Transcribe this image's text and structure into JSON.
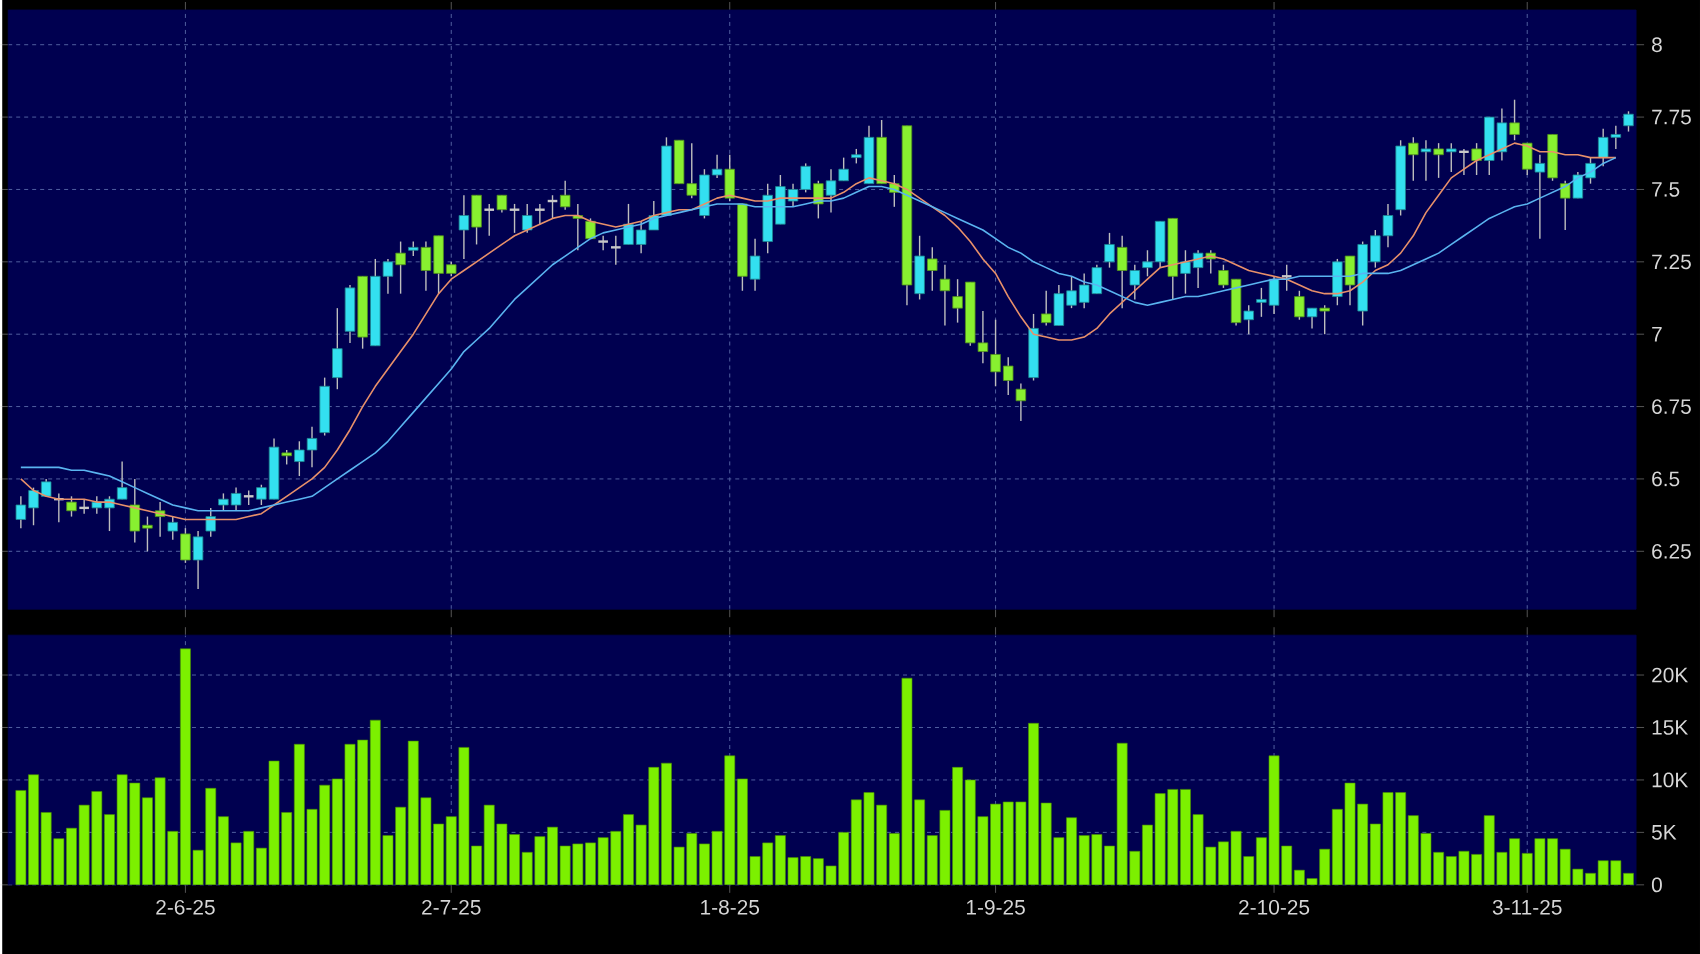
{
  "chart_data": [
    {
      "type": "candlestick",
      "tick_labels": "y",
      "grid": true,
      "ylim": [
        6.05,
        8.12
      ],
      "yticks": [
        6.25,
        6.5,
        6.75,
        7,
        7.25,
        7.5,
        7.75,
        8
      ],
      "categories": [
        null,
        null,
        null,
        null,
        null,
        null,
        null,
        null,
        null,
        null,
        null,
        null,
        null,
        null,
        null,
        null,
        null,
        null,
        null,
        null,
        null,
        null,
        null,
        null,
        null,
        null,
        null,
        null,
        null,
        null,
        null,
        null,
        null,
        null,
        null,
        null,
        null,
        null,
        null,
        null,
        null,
        null,
        null,
        null,
        null,
        null,
        null,
        null,
        null,
        null,
        null,
        null,
        null,
        null,
        null,
        null,
        null,
        null,
        null,
        null,
        null,
        null,
        null,
        null,
        null,
        null,
        null,
        null,
        null,
        null,
        null,
        null,
        null,
        null,
        null,
        null,
        null,
        null,
        null,
        null,
        null,
        null,
        null,
        null,
        null,
        null,
        null,
        null,
        null,
        null,
        null,
        null,
        null,
        null,
        null,
        null,
        null,
        null,
        null,
        null,
        null,
        null,
        null,
        null,
        null,
        null,
        null,
        null,
        null,
        null,
        null,
        null,
        null,
        null,
        null,
        null,
        null,
        null,
        null,
        null,
        null,
        null,
        null,
        null,
        null,
        null,
        null,
        null
      ],
      "ohlc": [
        [
          6.36,
          6.44,
          6.33,
          6.41
        ],
        [
          6.4,
          6.47,
          6.34,
          6.46
        ],
        [
          6.44,
          6.5,
          6.44,
          6.49
        ],
        [
          6.43,
          6.45,
          6.35,
          6.43
        ],
        [
          6.42,
          6.44,
          6.37,
          6.39
        ],
        [
          6.4,
          6.43,
          6.38,
          6.4
        ],
        [
          6.4,
          6.44,
          6.38,
          6.42
        ],
        [
          6.4,
          6.44,
          6.32,
          6.43
        ],
        [
          6.43,
          6.56,
          6.43,
          6.47
        ],
        [
          6.41,
          6.5,
          6.28,
          6.32
        ],
        [
          6.34,
          6.37,
          6.25,
          6.33
        ],
        [
          6.39,
          6.42,
          6.3,
          6.37
        ],
        [
          6.32,
          6.37,
          6.29,
          6.35
        ],
        [
          6.31,
          6.33,
          6.21,
          6.22
        ],
        [
          6.22,
          6.32,
          6.12,
          6.3
        ],
        [
          6.32,
          6.4,
          6.3,
          6.37
        ],
        [
          6.41,
          6.45,
          6.39,
          6.43
        ],
        [
          6.41,
          6.47,
          6.39,
          6.45
        ],
        [
          6.44,
          6.46,
          6.41,
          6.44
        ],
        [
          6.43,
          6.48,
          6.41,
          6.47
        ],
        [
          6.43,
          6.64,
          6.43,
          6.61
        ],
        [
          6.59,
          6.6,
          6.55,
          6.58
        ],
        [
          6.56,
          6.63,
          6.51,
          6.6
        ],
        [
          6.6,
          6.68,
          6.54,
          6.64
        ],
        [
          6.66,
          6.85,
          6.65,
          6.82
        ],
        [
          6.85,
          7.09,
          6.81,
          6.95
        ],
        [
          7.01,
          7.17,
          6.97,
          7.16
        ],
        [
          7.2,
          7.2,
          6.95,
          6.99
        ],
        [
          6.96,
          7.26,
          6.96,
          7.2
        ],
        [
          7.2,
          7.26,
          7.14,
          7.25
        ],
        [
          7.28,
          7.32,
          7.14,
          7.24
        ],
        [
          7.29,
          7.32,
          7.27,
          7.3
        ],
        [
          7.3,
          7.32,
          7.15,
          7.22
        ],
        [
          7.34,
          7.34,
          7.14,
          7.21
        ],
        [
          7.24,
          7.25,
          7.2,
          7.21
        ],
        [
          7.36,
          7.48,
          7.26,
          7.41
        ],
        [
          7.48,
          7.48,
          7.31,
          7.37
        ],
        [
          7.43,
          7.45,
          7.34,
          7.43
        ],
        [
          7.48,
          7.48,
          7.42,
          7.43
        ],
        [
          7.43,
          7.45,
          7.35,
          7.43
        ],
        [
          7.36,
          7.45,
          7.35,
          7.41
        ],
        [
          7.43,
          7.45,
          7.38,
          7.43
        ],
        [
          7.46,
          7.48,
          7.4,
          7.46
        ],
        [
          7.48,
          7.53,
          7.43,
          7.44
        ],
        [
          7.41,
          7.45,
          7.29,
          7.4
        ],
        [
          7.39,
          7.4,
          7.33,
          7.33
        ],
        [
          7.32,
          7.34,
          7.29,
          7.32
        ],
        [
          7.3,
          7.34,
          7.24,
          7.3
        ],
        [
          7.31,
          7.45,
          7.31,
          7.38
        ],
        [
          7.31,
          7.39,
          7.28,
          7.36
        ],
        [
          7.36,
          7.46,
          7.36,
          7.41
        ],
        [
          7.41,
          7.68,
          7.41,
          7.65
        ],
        [
          7.67,
          7.67,
          7.52,
          7.52
        ],
        [
          7.52,
          7.66,
          7.47,
          7.48
        ],
        [
          7.41,
          7.57,
          7.4,
          7.55
        ],
        [
          7.55,
          7.62,
          7.54,
          7.57
        ],
        [
          7.57,
          7.62,
          7.46,
          7.47
        ],
        [
          7.45,
          7.45,
          7.15,
          7.2
        ],
        [
          7.19,
          7.33,
          7.15,
          7.27
        ],
        [
          7.32,
          7.52,
          7.28,
          7.48
        ],
        [
          7.38,
          7.55,
          7.38,
          7.51
        ],
        [
          7.46,
          7.52,
          7.44,
          7.5
        ],
        [
          7.5,
          7.59,
          7.49,
          7.58
        ],
        [
          7.52,
          7.53,
          7.4,
          7.45
        ],
        [
          7.48,
          7.57,
          7.42,
          7.53
        ],
        [
          7.53,
          7.61,
          7.53,
          7.57
        ],
        [
          7.61,
          7.64,
          7.59,
          7.62
        ],
        [
          7.52,
          7.72,
          7.52,
          7.68
        ],
        [
          7.68,
          7.74,
          7.52,
          7.52
        ],
        [
          7.52,
          7.55,
          7.44,
          7.49
        ],
        [
          7.72,
          7.72,
          7.1,
          7.17
        ],
        [
          7.14,
          7.34,
          7.12,
          7.27
        ],
        [
          7.26,
          7.3,
          7.15,
          7.22
        ],
        [
          7.19,
          7.24,
          7.03,
          7.15
        ],
        [
          7.13,
          7.19,
          7.04,
          7.09
        ],
        [
          7.18,
          7.18,
          6.96,
          6.97
        ],
        [
          6.97,
          7.08,
          6.9,
          6.94
        ],
        [
          6.93,
          7.05,
          6.82,
          6.87
        ],
        [
          6.89,
          6.92,
          6.79,
          6.84
        ],
        [
          6.81,
          6.83,
          6.7,
          6.77
        ],
        [
          6.85,
          7.07,
          6.84,
          7.02
        ],
        [
          7.07,
          7.15,
          7.03,
          7.04
        ],
        [
          7.03,
          7.17,
          7.03,
          7.14
        ],
        [
          7.1,
          7.2,
          7.09,
          7.15
        ],
        [
          7.11,
          7.21,
          7.09,
          7.17
        ],
        [
          7.14,
          7.24,
          7.14,
          7.23
        ],
        [
          7.25,
          7.35,
          7.23,
          7.31
        ],
        [
          7.3,
          7.34,
          7.09,
          7.22
        ],
        [
          7.17,
          7.24,
          7.12,
          7.22
        ],
        [
          7.23,
          7.29,
          7.2,
          7.25
        ],
        [
          7.25,
          7.39,
          7.23,
          7.39
        ],
        [
          7.4,
          7.4,
          7.12,
          7.2
        ],
        [
          7.21,
          7.29,
          7.14,
          7.25
        ],
        [
          7.23,
          7.29,
          7.16,
          7.28
        ],
        [
          7.28,
          7.29,
          7.21,
          7.26
        ],
        [
          7.22,
          7.24,
          7.16,
          7.17
        ],
        [
          7.19,
          7.19,
          7.03,
          7.04
        ],
        [
          7.05,
          7.1,
          7.0,
          7.08
        ],
        [
          7.11,
          7.16,
          7.06,
          7.12
        ],
        [
          7.1,
          7.2,
          7.07,
          7.19
        ],
        [
          7.2,
          7.24,
          7.15,
          7.2
        ],
        [
          7.13,
          7.15,
          7.05,
          7.06
        ],
        [
          7.06,
          7.09,
          7.02,
          7.09
        ],
        [
          7.09,
          7.1,
          7.0,
          7.08
        ],
        [
          7.13,
          7.26,
          7.1,
          7.25
        ],
        [
          7.27,
          7.27,
          7.1,
          7.17
        ],
        [
          7.08,
          7.32,
          7.03,
          7.31
        ],
        [
          7.25,
          7.36,
          7.23,
          7.34
        ],
        [
          7.34,
          7.45,
          7.3,
          7.41
        ],
        [
          7.43,
          7.67,
          7.41,
          7.65
        ],
        [
          7.66,
          7.68,
          7.53,
          7.62
        ],
        [
          7.63,
          7.67,
          7.53,
          7.64
        ],
        [
          7.64,
          7.66,
          7.54,
          7.62
        ],
        [
          7.63,
          7.66,
          7.56,
          7.64
        ],
        [
          7.63,
          7.64,
          7.55,
          7.63
        ],
        [
          7.64,
          7.66,
          7.55,
          7.6
        ],
        [
          7.6,
          7.75,
          7.55,
          7.75
        ],
        [
          7.63,
          7.78,
          7.6,
          7.73
        ],
        [
          7.73,
          7.81,
          7.67,
          7.69
        ],
        [
          7.66,
          7.66,
          7.55,
          7.57
        ],
        [
          7.56,
          7.62,
          7.33,
          7.59
        ],
        [
          7.69,
          7.69,
          7.53,
          7.54
        ],
        [
          7.52,
          7.53,
          7.36,
          7.47
        ],
        [
          7.47,
          7.56,
          7.47,
          7.55
        ],
        [
          7.54,
          7.61,
          7.52,
          7.59
        ],
        [
          7.61,
          7.71,
          7.58,
          7.68
        ],
        [
          7.68,
          7.72,
          7.64,
          7.69
        ],
        [
          7.72,
          7.77,
          7.7,
          7.76
        ]
      ],
      "colors": [
        "#33e0f0",
        "#33e0f0",
        "#33e0f0",
        "#c8c8c8",
        "#88f030",
        "#c8c8c8",
        "#33e0f0",
        "#33e0f0",
        "#33e0f0",
        "#88f030",
        "#88f030",
        "#88f030",
        "#33e0f0",
        "#88f030",
        "#33e0f0",
        "#33e0f0",
        "#33e0f0",
        "#33e0f0",
        "#c8c8c8",
        "#33e0f0",
        "#33e0f0",
        "#88f030",
        "#33e0f0",
        "#33e0f0",
        "#33e0f0",
        "#33e0f0",
        "#33e0f0",
        "#88f030",
        "#33e0f0",
        "#33e0f0",
        "#88f030",
        "#33e0f0",
        "#88f030",
        "#88f030",
        "#88f030",
        "#33e0f0",
        "#88f030",
        "#c8c8c8",
        "#88f030",
        "#c8c8c8",
        "#33e0f0",
        "#c8c8c8",
        "#c8c8c8",
        "#88f030",
        "#88f030",
        "#88f030",
        "#c8c8c8",
        "#c8c8c8",
        "#33e0f0",
        "#33e0f0",
        "#33e0f0",
        "#33e0f0",
        "#88f030",
        "#88f030",
        "#33e0f0",
        "#33e0f0",
        "#88f030",
        "#88f030",
        "#33e0f0",
        "#33e0f0",
        "#33e0f0",
        "#33e0f0",
        "#33e0f0",
        "#88f030",
        "#33e0f0",
        "#33e0f0",
        "#33e0f0",
        "#33e0f0",
        "#88f030",
        "#88f030",
        "#88f030",
        "#33e0f0",
        "#88f030",
        "#88f030",
        "#88f030",
        "#88f030",
        "#88f030",
        "#88f030",
        "#88f030",
        "#88f030",
        "#33e0f0",
        "#88f030",
        "#33e0f0",
        "#33e0f0",
        "#33e0f0",
        "#33e0f0",
        "#33e0f0",
        "#88f030",
        "#33e0f0",
        "#33e0f0",
        "#33e0f0",
        "#88f030",
        "#33e0f0",
        "#33e0f0",
        "#88f030",
        "#88f030",
        "#88f030",
        "#33e0f0",
        "#33e0f0",
        "#33e0f0",
        "#c8c8c8",
        "#88f030",
        "#33e0f0",
        "#88f030",
        "#33e0f0",
        "#88f030",
        "#33e0f0",
        "#33e0f0",
        "#33e0f0",
        "#33e0f0",
        "#88f030",
        "#33e0f0",
        "#88f030",
        "#33e0f0",
        "#c8c8c8",
        "#88f030",
        "#33e0f0",
        "#33e0f0",
        "#88f030",
        "#88f030",
        "#33e0f0",
        "#88f030",
        "#88f030",
        "#33e0f0",
        "#33e0f0",
        "#33e0f0",
        "#33e0f0",
        "#33e0f0"
      ],
      "series": [
        {
          "type": "line",
          "color": "#e8906a",
          "values": [
            6.5,
            6.46,
            6.44,
            6.43,
            6.43,
            6.43,
            6.42,
            6.42,
            6.41,
            6.4,
            6.39,
            6.38,
            6.37,
            6.36,
            6.36,
            6.36,
            6.36,
            6.36,
            6.37,
            6.38,
            6.41,
            6.44,
            6.47,
            6.5,
            6.54,
            6.6,
            6.67,
            6.75,
            6.82,
            6.88,
            6.94,
            7.0,
            7.07,
            7.14,
            7.19,
            7.22,
            7.25,
            7.28,
            7.31,
            7.34,
            7.36,
            7.38,
            7.4,
            7.41,
            7.41,
            7.39,
            7.38,
            7.37,
            7.38,
            7.39,
            7.41,
            7.42,
            7.43,
            7.43,
            7.45,
            7.47,
            7.48,
            7.47,
            7.46,
            7.46,
            7.47,
            7.47,
            7.47,
            7.47,
            7.47,
            7.49,
            7.52,
            7.54,
            7.53,
            7.52,
            7.5,
            7.47,
            7.44,
            7.41,
            7.37,
            7.32,
            7.26,
            7.21,
            7.13,
            7.06,
            7.0,
            6.99,
            6.98,
            6.98,
            6.99,
            7.02,
            7.07,
            7.11,
            7.15,
            7.19,
            7.23,
            7.24,
            7.25,
            7.26,
            7.27,
            7.26,
            7.24,
            7.22,
            7.21,
            7.2,
            7.19,
            7.17,
            7.15,
            7.14,
            7.14,
            7.15,
            7.18,
            7.22,
            7.24,
            7.28,
            7.34,
            7.42,
            7.48,
            7.54,
            7.57,
            7.6,
            7.62,
            7.64,
            7.66,
            7.65,
            7.63,
            7.63,
            7.62,
            7.62,
            7.61,
            7.61,
            7.61,
            null
          ]
        },
        {
          "type": "line",
          "color": "#5ab4f0",
          "values": [
            6.54,
            6.54,
            6.54,
            6.54,
            6.53,
            6.53,
            6.52,
            6.51,
            6.49,
            6.47,
            6.45,
            6.43,
            6.41,
            6.4,
            6.39,
            6.39,
            6.39,
            6.39,
            6.39,
            6.4,
            6.41,
            6.42,
            6.43,
            6.44,
            6.47,
            6.5,
            6.53,
            6.56,
            6.59,
            6.63,
            6.68,
            6.73,
            6.78,
            6.83,
            6.88,
            6.94,
            6.98,
            7.02,
            7.07,
            7.12,
            7.16,
            7.2,
            7.24,
            7.27,
            7.3,
            7.33,
            7.35,
            7.36,
            7.37,
            7.38,
            7.4,
            7.41,
            7.42,
            7.43,
            7.44,
            7.45,
            7.45,
            7.45,
            7.44,
            7.44,
            7.44,
            7.44,
            7.45,
            7.46,
            7.46,
            7.47,
            7.49,
            7.51,
            7.51,
            7.5,
            7.48,
            7.46,
            7.44,
            7.42,
            7.4,
            7.38,
            7.36,
            7.33,
            7.3,
            7.28,
            7.25,
            7.23,
            7.21,
            7.2,
            7.18,
            7.17,
            7.15,
            7.13,
            7.11,
            7.1,
            7.11,
            7.12,
            7.13,
            7.13,
            7.14,
            7.15,
            7.16,
            7.17,
            7.18,
            7.19,
            7.19,
            7.2,
            7.2,
            7.2,
            7.2,
            7.2,
            7.21,
            7.21,
            7.21,
            7.22,
            7.24,
            7.26,
            7.28,
            7.31,
            7.34,
            7.37,
            7.4,
            7.42,
            7.44,
            7.45,
            7.47,
            7.49,
            7.51,
            7.54,
            7.56,
            7.59,
            7.61,
            null
          ]
        }
      ]
    },
    {
      "type": "bar",
      "grid": true,
      "color": "#7cf000",
      "ylim": [
        0,
        23.8
      ],
      "yticks": [
        0,
        {
          "value": 5,
          "label": "5K"
        },
        {
          "value": 10,
          "label": "10K"
        },
        {
          "value": 15,
          "label": "15K"
        },
        {
          "value": 20,
          "label": "20K"
        }
      ],
      "categories": [
        null,
        null,
        null,
        null,
        null,
        null,
        null,
        null,
        null,
        null,
        null,
        null,
        null,
        "2-6-25",
        null,
        null,
        null,
        null,
        null,
        null,
        null,
        null,
        null,
        null,
        null,
        null,
        null,
        null,
        null,
        null,
        null,
        null,
        null,
        null,
        "2-7-25",
        null,
        null,
        null,
        null,
        null,
        null,
        null,
        null,
        null,
        null,
        null,
        null,
        null,
        null,
        null,
        null,
        null,
        null,
        null,
        null,
        null,
        "1-8-25",
        null,
        null,
        null,
        null,
        null,
        null,
        null,
        null,
        null,
        null,
        null,
        null,
        null,
        null,
        null,
        null,
        null,
        null,
        null,
        null,
        "1-9-25",
        null,
        null,
        null,
        null,
        null,
        null,
        null,
        null,
        null,
        null,
        null,
        null,
        null,
        null,
        null,
        null,
        null,
        null,
        null,
        null,
        null,
        "2-10-25",
        null,
        null,
        null,
        null,
        null,
        null,
        null,
        null,
        null,
        null,
        null,
        null,
        null,
        null,
        null,
        null,
        null,
        null,
        null,
        "3-11-25",
        null,
        null,
        null,
        null,
        null,
        null,
        null,
        null
      ],
      "values": [
        9.0,
        10.5,
        6.9,
        4.4,
        5.4,
        7.6,
        8.9,
        6.7,
        10.5,
        9.7,
        8.3,
        10.2,
        5.1,
        22.5,
        3.3,
        9.2,
        6.5,
        4.0,
        5.1,
        3.5,
        11.8,
        6.9,
        13.4,
        7.2,
        9.5,
        10.1,
        13.4,
        13.8,
        15.7,
        4.7,
        7.4,
        13.7,
        8.3,
        5.8,
        6.5,
        13.1,
        3.7,
        7.6,
        5.8,
        4.8,
        3.1,
        4.6,
        5.5,
        3.7,
        3.9,
        4.0,
        4.5,
        5.1,
        6.7,
        5.7,
        11.2,
        11.6,
        3.6,
        4.9,
        3.9,
        5.1,
        12.3,
        10.1,
        2.7,
        4.0,
        4.7,
        2.6,
        2.7,
        2.5,
        1.8,
        5.0,
        8.1,
        8.8,
        7.6,
        4.9,
        19.7,
        8.1,
        4.7,
        7.1,
        11.2,
        10.0,
        6.5,
        7.7,
        7.9,
        7.9,
        15.4,
        7.8,
        4.5,
        6.4,
        4.7,
        4.8,
        3.7,
        13.5,
        3.2,
        5.7,
        8.7,
        9.1,
        9.1,
        6.7,
        3.6,
        4.1,
        5.1,
        2.7,
        4.5,
        12.3,
        3.7,
        1.4,
        0.6,
        3.4,
        7.2,
        9.7,
        7.7,
        5.8,
        8.8,
        8.8,
        6.6,
        4.9,
        3.1,
        2.7,
        3.2,
        2.9,
        6.6,
        3.1,
        4.4,
        3.0,
        4.4,
        4.4,
        3.4,
        1.5,
        1.1,
        2.3,
        2.3,
        1.1
      ]
    }
  ]
}
